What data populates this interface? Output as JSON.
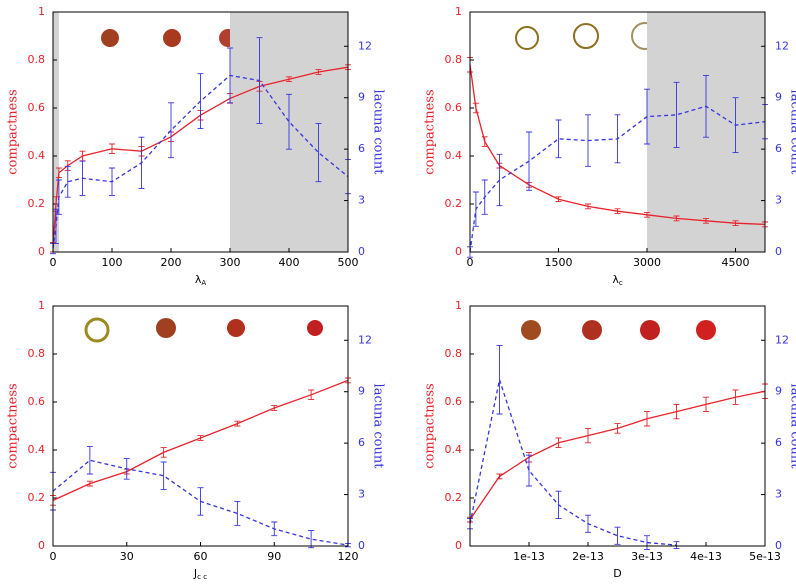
{
  "chart_data": [
    {
      "type": "line",
      "x_label": "λ",
      "x_label_sub": "A",
      "y_label": "compactness",
      "y2_label": "lacuna count",
      "x": [
        0,
        5,
        10,
        25,
        50,
        100,
        150,
        200,
        250,
        300,
        350,
        400,
        450,
        500
      ],
      "series": [
        {
          "color": "#e8232b",
          "axis": "y",
          "line_style": "solid",
          "values": [
            0.02,
            0.2,
            0.33,
            0.36,
            0.4,
            0.43,
            0.42,
            0.48,
            0.57,
            0.64,
            0.69,
            0.72,
            0.75,
            0.77
          ],
          "errors": [
            0.02,
            0.03,
            0.02,
            0.02,
            0.02,
            0.02,
            0.02,
            0.02,
            0.02,
            0.02,
            0.02,
            0.01,
            0.01,
            0.01
          ]
        },
        {
          "color": "#3535e0",
          "axis": "y2",
          "line_style": "dashed",
          "values": [
            0.2,
            1.5,
            3.2,
            4.1,
            4.3,
            4.1,
            5.2,
            7.1,
            8.8,
            10.3,
            10.0,
            7.6,
            5.8,
            4.4
          ],
          "errors": [
            0.3,
            1.0,
            1.0,
            0.9,
            1.0,
            0.8,
            1.5,
            1.6,
            1.6,
            1.6,
            2.5,
            1.6,
            1.7,
            1.0
          ]
        }
      ],
      "xlim": [
        0,
        500
      ],
      "xticks": [
        0,
        100,
        200,
        300,
        400,
        500
      ],
      "ylim": [
        0,
        1
      ],
      "yticks": [
        0,
        0.2,
        0.4,
        0.6,
        0.8,
        1
      ],
      "y2lim": [
        0,
        14
      ],
      "y2ticks": [
        0,
        3,
        6,
        9,
        12
      ],
      "shaded_ranges": [
        [
          0,
          10
        ],
        [
          300,
          500
        ]
      ],
      "shade_color": "#d3d3d3"
    },
    {
      "type": "line",
      "x_label": "λ",
      "x_label_sub": "c",
      "y_label": "compactness",
      "y2_label": "lacuna count",
      "x": [
        0,
        100,
        250,
        500,
        1000,
        1500,
        2000,
        2500,
        3000,
        3500,
        4000,
        4500,
        5000
      ],
      "series": [
        {
          "color": "#e8232b",
          "axis": "y",
          "line_style": "solid",
          "values": [
            0.78,
            0.6,
            0.46,
            0.36,
            0.28,
            0.22,
            0.19,
            0.17,
            0.155,
            0.14,
            0.13,
            0.12,
            0.115
          ],
          "errors": [
            0.03,
            0.02,
            0.02,
            0.01,
            0.01,
            0.01,
            0.01,
            0.01,
            0.01,
            0.01,
            0.01,
            0.01,
            0.01
          ]
        },
        {
          "color": "#3535e0",
          "axis": "y2",
          "line_style": "dashed",
          "values": [
            0,
            2.5,
            3.2,
            4.2,
            5.3,
            6.6,
            6.5,
            6.6,
            7.9,
            8.0,
            8.5,
            7.4,
            7.6
          ],
          "errors": [
            0.3,
            1.0,
            1.0,
            1.5,
            1.7,
            1.1,
            1.5,
            1.4,
            1.6,
            1.9,
            1.8,
            1.6,
            1.0
          ]
        }
      ],
      "xlim": [
        0,
        5000
      ],
      "xticks": [
        0,
        1500,
        3000,
        4500
      ],
      "ylim": [
        0,
        1
      ],
      "yticks": [
        0,
        0.2,
        0.4,
        0.6,
        0.8,
        1
      ],
      "y2lim": [
        0,
        14
      ],
      "y2ticks": [
        0,
        3,
        6,
        9,
        12
      ],
      "shaded_ranges": [
        [
          3000,
          5000
        ]
      ],
      "shade_color": "#d3d3d3"
    },
    {
      "type": "line",
      "x_label": "J",
      "x_label_sub": "c c",
      "y_label": "compactness",
      "y2_label": "lacuna count",
      "x": [
        0,
        15,
        30,
        45,
        60,
        75,
        90,
        105,
        120
      ],
      "series": [
        {
          "color": "#e8232b",
          "axis": "y",
          "line_style": "solid",
          "values": [
            0.19,
            0.26,
            0.31,
            0.39,
            0.45,
            0.51,
            0.575,
            0.63,
            0.69
          ],
          "errors": [
            0.02,
            0.01,
            0.01,
            0.02,
            0.01,
            0.01,
            0.01,
            0.02,
            0.01
          ]
        },
        {
          "color": "#3535e0",
          "axis": "y2",
          "line_style": "dashed",
          "values": [
            3.2,
            5.0,
            4.5,
            4.1,
            2.6,
            1.9,
            1.0,
            0.4,
            0.05
          ],
          "errors": [
            1.1,
            0.8,
            0.6,
            0.8,
            0.8,
            0.7,
            0.4,
            0.5,
            0.1
          ]
        }
      ],
      "xlim": [
        0,
        120
      ],
      "xticks": [
        0,
        30,
        60,
        90,
        120
      ],
      "ylim": [
        0,
        1
      ],
      "yticks": [
        0,
        0.2,
        0.4,
        0.6,
        0.8,
        1
      ],
      "y2lim": [
        0,
        14
      ],
      "y2ticks": [
        0,
        3,
        6,
        9,
        12
      ]
    },
    {
      "type": "line",
      "x_label": "D",
      "y_label": "compactness",
      "y2_label": "lacuna count",
      "x": [
        0,
        5e-14,
        1e-13,
        1.5e-13,
        2e-13,
        2.5e-13,
        3e-13,
        3.5e-13,
        4e-13,
        4.5e-13,
        5e-13
      ],
      "series": [
        {
          "color": "#e8232b",
          "axis": "y",
          "line_style": "solid",
          "values": [
            0.11,
            0.29,
            0.37,
            0.43,
            0.46,
            0.49,
            0.53,
            0.56,
            0.59,
            0.62,
            0.645
          ],
          "errors": [
            0.01,
            0.01,
            0.02,
            0.02,
            0.03,
            0.02,
            0.03,
            0.03,
            0.03,
            0.03,
            0.03
          ]
        },
        {
          "color": "#3535e0",
          "axis": "y2",
          "line_style": "dashed",
          "values": [
            1.3,
            9.7,
            4.4,
            2.4,
            1.3,
            0.6,
            0.2,
            0.05,
            null,
            null,
            null
          ],
          "errors": [
            0.3,
            2.0,
            0.9,
            0.8,
            0.5,
            0.5,
            0.4,
            0.2,
            null,
            null,
            null
          ]
        }
      ],
      "xlim": [
        0,
        5e-13
      ],
      "xticks": [
        {
          "value": 1e-13,
          "label": "1e-13"
        },
        {
          "value": 2e-13,
          "label": "2e-13"
        },
        {
          "value": 3e-13,
          "label": "3e-13"
        },
        {
          "value": 4e-13,
          "label": "4e-13"
        },
        {
          "value": 5e-13,
          "label": "5e-13"
        }
      ],
      "ylim": [
        0,
        1
      ],
      "yticks": [
        0,
        0.2,
        0.4,
        0.6,
        0.8,
        1
      ],
      "y2lim": [
        0,
        14
      ],
      "y2ticks": [
        0,
        3,
        6,
        9,
        12
      ]
    }
  ]
}
